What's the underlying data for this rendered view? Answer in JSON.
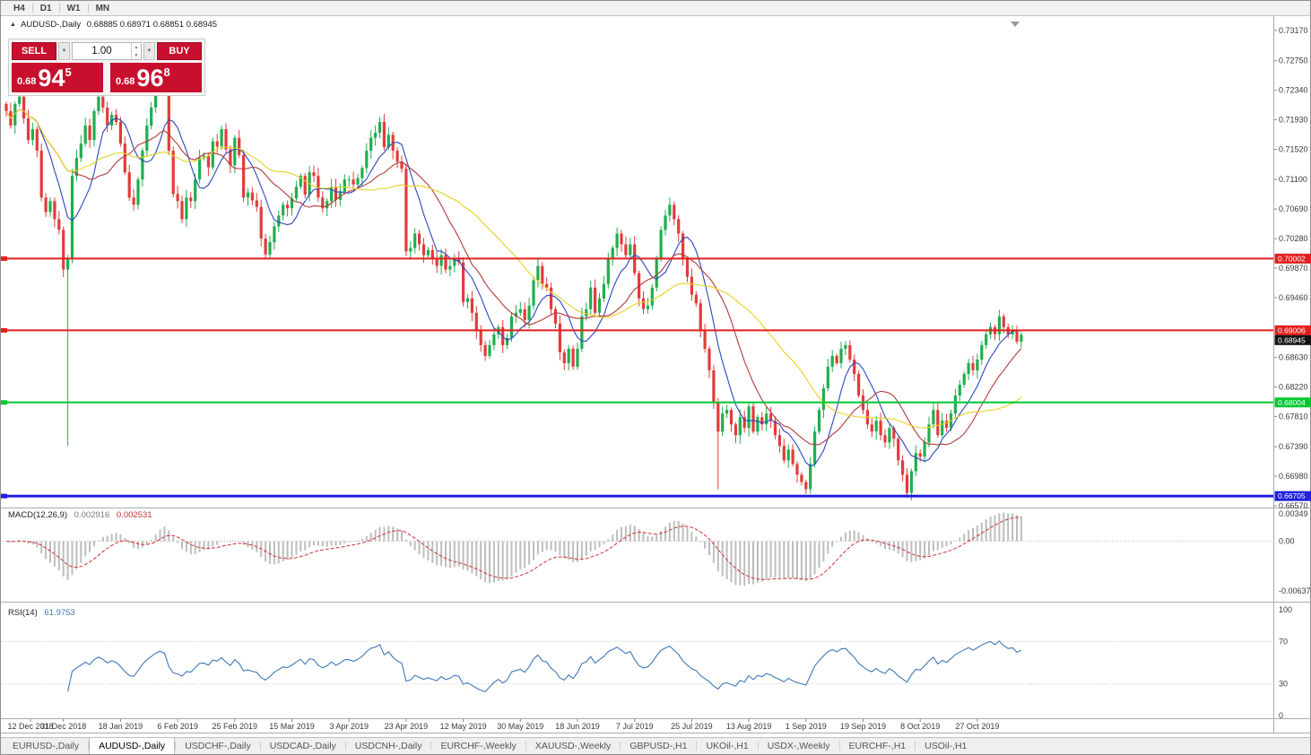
{
  "toolbar": {
    "timeframes": [
      "H4",
      "D1",
      "W1",
      "MN"
    ]
  },
  "header": {
    "collapse_icon": "▲",
    "symbol_period": "AUDUSD-,Daily",
    "ohlc": "0.68885 0.68971 0.68851 0.68945"
  },
  "trade_panel": {
    "sell_label": "SELL",
    "buy_label": "BUY",
    "volume": "1.00",
    "sell_price_small": "0.68",
    "sell_price_big": "94",
    "sell_price_sup": "5",
    "buy_price_small": "0.68",
    "buy_price_big": "96",
    "buy_price_sup": "8",
    "accent_red": "#c8102e"
  },
  "macd": {
    "label": "MACD(12,26,9)",
    "value_main": "0.002916",
    "value_signal": "0.002531"
  },
  "rsi": {
    "label": "RSI(14)",
    "value": "61.9753"
  },
  "tabs": {
    "active_index": 1,
    "items": [
      "EURUSD-,Daily",
      "AUDUSD-,Daily",
      "USDCHF-,Daily",
      "USDCAD-,Daily",
      "USDCNH-,Daily",
      "EURCHF-,Weekly",
      "XAUUSD-,Weekly",
      "GBPUSD-,H1",
      "UKOil-,H1",
      "USDX-,Weekly",
      "EURCHF-,H1",
      "USOil-,H1"
    ]
  },
  "chart_data": {
    "type": "candlestick",
    "symbol": "AUDUSD",
    "timeframe": "Daily",
    "title_ohlc": {
      "open": "0.68885",
      "high": "0.68971",
      "low": "0.68851",
      "close": "0.68945"
    },
    "current_price": "0.68945",
    "first_open": 0.7215,
    "closes": [
      0.7205,
      0.7185,
      0.7215,
      0.7225,
      0.7195,
      0.7165,
      0.718,
      0.715,
      0.7085,
      0.7065,
      0.708,
      0.7055,
      0.704,
      0.6985,
      0.7,
      0.7115,
      0.714,
      0.716,
      0.7185,
      0.7165,
      0.7205,
      0.7225,
      0.721,
      0.7185,
      0.72,
      0.719,
      0.716,
      0.712,
      0.7085,
      0.7075,
      0.711,
      0.715,
      0.7185,
      0.721,
      0.724,
      0.7255,
      0.7245,
      0.715,
      0.709,
      0.708,
      0.7055,
      0.7085,
      0.708,
      0.711,
      0.714,
      0.7143,
      0.7127,
      0.7163,
      0.7156,
      0.718,
      0.7152,
      0.713,
      0.7168,
      0.7144,
      0.7085,
      0.7092,
      0.7081,
      0.7072,
      0.7028,
      0.7006,
      0.7023,
      0.7045,
      0.706,
      0.7075,
      0.707,
      0.7084,
      0.71,
      0.7115,
      0.7089,
      0.712,
      0.7115,
      0.7085,
      0.707,
      0.708,
      0.71,
      0.7082,
      0.7093,
      0.711,
      0.711,
      0.7103,
      0.7112,
      0.7126,
      0.715,
      0.7168,
      0.7175,
      0.719,
      0.7155,
      0.7172,
      0.715,
      0.7135,
      0.7125,
      0.701,
      0.7015,
      0.7035,
      0.702,
      0.7005,
      0.7012,
      0.7,
      0.699,
      0.7005,
      0.6985,
      0.699,
      0.7,
      0.6995,
      0.694,
      0.6945,
      0.6925,
      0.69,
      0.688,
      0.6865,
      0.688,
      0.6895,
      0.6905,
      0.688,
      0.689,
      0.692,
      0.6925,
      0.693,
      0.6915,
      0.6935,
      0.697,
      0.699,
      0.6965,
      0.696,
      0.693,
      0.691,
      0.687,
      0.6855,
      0.6875,
      0.685,
      0.6875,
      0.692,
      0.693,
      0.696,
      0.6925,
      0.6945,
      0.6965,
      0.7,
      0.7015,
      0.7035,
      0.702,
      0.7005,
      0.702,
      0.698,
      0.6945,
      0.693,
      0.6935,
      0.696,
      0.7,
      0.704,
      0.706,
      0.7075,
      0.7055,
      0.7035,
      0.7,
      0.6975,
      0.695,
      0.6938,
      0.69,
      0.6875,
      0.6845,
      0.68,
      0.676,
      0.6785,
      0.679,
      0.677,
      0.6755,
      0.678,
      0.6765,
      0.6795,
      0.676,
      0.678,
      0.677,
      0.6785,
      0.6775,
      0.6755,
      0.674,
      0.672,
      0.6735,
      0.6715,
      0.67,
      0.669,
      0.668,
      0.6715,
      0.676,
      0.679,
      0.682,
      0.685,
      0.6865,
      0.6855,
      0.6875,
      0.688,
      0.686,
      0.684,
      0.681,
      0.679,
      0.677,
      0.676,
      0.6775,
      0.6755,
      0.6745,
      0.6765,
      0.675,
      0.672,
      0.67,
      0.6675,
      0.6705,
      0.673,
      0.6725,
      0.6745,
      0.677,
      0.679,
      0.6755,
      0.6775,
      0.6765,
      0.6785,
      0.681,
      0.6825,
      0.684,
      0.6855,
      0.6845,
      0.686,
      0.688,
      0.6895,
      0.6905,
      0.6895,
      0.692,
      0.6905,
      0.6895,
      0.69,
      0.6885,
      0.68945
    ],
    "extremes": [
      {
        "i": 14,
        "low": 0.674
      },
      {
        "i": 35,
        "high": 0.7262
      },
      {
        "i": 151,
        "high": 0.7085
      },
      {
        "i": 162,
        "low": 0.668
      },
      {
        "i": 182,
        "low": 0.6677
      },
      {
        "i": 205,
        "low": 0.667
      }
    ],
    "levels": [
      {
        "price": 0.70002,
        "label": "0.70002",
        "color": "#e21f1f",
        "line": true,
        "width": 2
      },
      {
        "price": 0.69006,
        "label": "0.69006",
        "color": "#e21f1f",
        "line": true,
        "width": 2
      },
      {
        "price": 0.68945,
        "label": "0.68945",
        "color": "#141414",
        "line": false,
        "offset": 6
      },
      {
        "price": 0.68004,
        "label": "0.68004",
        "color": "#00c832",
        "line": true,
        "width": 2
      },
      {
        "price": 0.66705,
        "label": "0.66705",
        "color": "#2020dd",
        "line": true,
        "width": 3
      }
    ],
    "y_axis_labels": [
      "0.73170",
      "0.72750",
      "0.72340",
      "0.71930",
      "0.71520",
      "0.71100",
      "0.70690",
      "0.70280",
      "0.69870",
      "0.69460",
      "0.68630",
      "0.68220",
      "0.67810",
      "0.67390",
      "0.66980",
      "0.66570"
    ],
    "x_axis_dates": [
      "12 Dec 2018",
      "31 Dec 2018",
      "18 Jan 2019",
      "6 Feb 2019",
      "25 Feb 2019",
      "15 Mar 2019",
      "3 Apr 2019",
      "23 Apr 2019",
      "12 May 2019",
      "30 May 2019",
      "18 Jun 2019",
      "7 Jul 2019",
      "25 Jul 2019",
      "13 Aug 2019",
      "1 Sep 2019",
      "19 Sep 2019",
      "8 Oct 2019",
      "27 Oct 2019"
    ],
    "moving_averages": [
      {
        "period": 8,
        "color": "#2b47c0"
      },
      {
        "period": 16,
        "color": "#b23a3a"
      },
      {
        "period": 34,
        "color": "#e8d21f"
      }
    ],
    "macd_indicator": {
      "params": [
        12,
        26,
        9
      ],
      "axis_labels": [
        "0.00349",
        "0.00",
        "-0.00637"
      ]
    },
    "rsi_indicator": {
      "period": 14,
      "axis_labels": [
        "100",
        "70",
        "30",
        "0"
      ],
      "guide_levels": [
        70,
        30
      ]
    },
    "colors": {
      "bull": "#1fae4e",
      "bear": "#e23b3b",
      "macd_hist": "#bdbdbd",
      "macd_signal": "#cc3333",
      "rsi_line": "#3e78b5",
      "axis_text": "#3a3a3a",
      "separator": "#ababab"
    }
  }
}
